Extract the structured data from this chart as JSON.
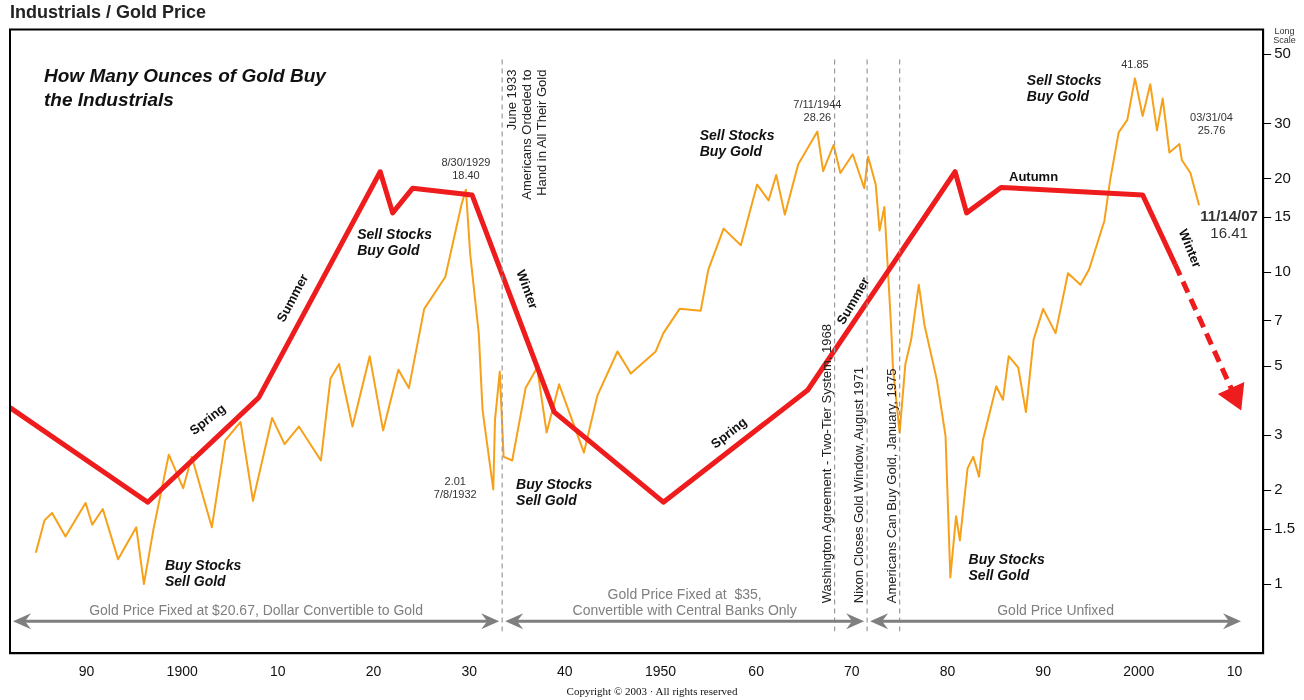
{
  "chart_data": {
    "type": "line",
    "title": "Industrials / Gold Price",
    "subtitle": "How Many Ounces of Gold Buy\nthe Industrials",
    "ylabel": "Long\nScale",
    "log": "y",
    "xlim": [
      1882,
      2013
    ],
    "ylim": [
      0.6,
      60
    ],
    "xticks": [
      {
        "value": 1890,
        "label": "90"
      },
      {
        "value": 1900,
        "label": "1900"
      },
      {
        "value": 1910,
        "label": "10"
      },
      {
        "value": 1920,
        "label": "20"
      },
      {
        "value": 1930,
        "label": "30"
      },
      {
        "value": 1940,
        "label": "40"
      },
      {
        "value": 1950,
        "label": "1950"
      },
      {
        "value": 1960,
        "label": "60"
      },
      {
        "value": 1970,
        "label": "70"
      },
      {
        "value": 1980,
        "label": "80"
      },
      {
        "value": 1990,
        "label": "90"
      },
      {
        "value": 2000,
        "label": "2000"
      },
      {
        "value": 2010,
        "label": "10"
      }
    ],
    "yticks": [
      1,
      1.5,
      2,
      3,
      5,
      7,
      10,
      15,
      20,
      30,
      50
    ],
    "series": [
      {
        "color": "#f7a11a",
        "x": [
          1884.7,
          1885.6,
          1886.4,
          1887.8,
          1889.9,
          1890.6,
          1891.7,
          1893.3,
          1895.2,
          1896.0,
          1897.0,
          1898.6,
          1900.1,
          1901.0,
          1903.1,
          1904.5,
          1906.1,
          1907.4,
          1909.4,
          1910.7,
          1912.2,
          1914.5,
          1915.5,
          1916.4,
          1917.8,
          1919.6,
          1921.0,
          1922.6,
          1923.7,
          1925.3,
          1927.5,
          1929.2,
          1929.66,
          1930.1,
          1931.0,
          1931.4,
          1932.52,
          1932.7,
          1933.2,
          1933.6,
          1934.5,
          1935.9,
          1937.1,
          1938.1,
          1939.4,
          1942.0,
          1943.4,
          1945.5,
          1946.9,
          1949.5,
          1950.3,
          1952.0,
          1954.2,
          1955.0,
          1956.6,
          1958.4,
          1960.1,
          1961.3,
          1962.1,
          1963.0,
          1964.4,
          1966.4,
          1967.0,
          1968.1,
          1968.8,
          1970.1,
          1971.3,
          1971.7,
          1972.5,
          1972.9,
          1973.4,
          1974.1,
          1974.3,
          1975.0,
          1975.6,
          1976.2,
          1977.0,
          1977.6,
          1978.9,
          1979.8,
          1980.3,
          1980.9,
          1981.3,
          1982.1,
          1982.7,
          1983.3,
          1983.7,
          1985.1,
          1985.8,
          1986.4,
          1987.4,
          1988.2,
          1989.0,
          1990.0,
          1991.3,
          1992.6,
          1993.9,
          1994.8,
          1996.4,
          1997.0,
          1997.9,
          1998.8,
          1999.6,
          2000.4,
          2001.2,
          2001.9,
          2002.5,
          2003.2,
          2004.25,
          2004.5,
          2005.4,
          2006.3
        ],
        "values": [
          1.26,
          1.6,
          1.69,
          1.42,
          1.82,
          1.55,
          1.74,
          1.2,
          1.52,
          1.0,
          1.5,
          2.6,
          2.03,
          2.56,
          1.52,
          2.89,
          3.31,
          1.85,
          3.41,
          2.81,
          3.2,
          2.49,
          4.56,
          5.08,
          3.2,
          5.38,
          3.11,
          4.87,
          4.25,
          7.63,
          9.65,
          16.5,
          18.4,
          11.5,
          6.38,
          3.61,
          2.01,
          3.36,
          4.8,
          2.56,
          2.49,
          4.25,
          4.94,
          3.06,
          4.37,
          2.64,
          4.02,
          5.57,
          4.73,
          5.57,
          6.38,
          7.63,
          7.52,
          10.2,
          13.8,
          12.2,
          19.1,
          17.0,
          20.5,
          15.3,
          22.2,
          28.26,
          21.1,
          25.6,
          20.8,
          23.9,
          18.6,
          23.5,
          19.1,
          13.6,
          16.2,
          6.76,
          4.94,
          3.06,
          5.08,
          6.07,
          9.12,
          6.76,
          4.5,
          2.98,
          1.05,
          1.65,
          1.38,
          2.35,
          2.56,
          2.21,
          2.89,
          4.31,
          3.9,
          5.38,
          4.94,
          3.56,
          6.07,
          7.63,
          6.38,
          9.93,
          9.12,
          10.2,
          14.6,
          19.7,
          28.1,
          30.8,
          41.85,
          31.7,
          40.1,
          28.5,
          36.1,
          24.2,
          25.76,
          22.9,
          20.8,
          16.41
        ]
      },
      {
        "color": "#ee1c1c",
        "x": [
          1882,
          1896.4,
          1908,
          1920.7,
          1922,
          1924.1,
          1930.3,
          1938.9,
          1950.3,
          1965.4,
          1980.8,
          1982,
          1985.6,
          2000.4,
          2003.8
        ],
        "values": [
          3.68,
          1.83,
          3.96,
          21,
          15.5,
          18.6,
          17.7,
          3.56,
          1.83,
          4.19,
          21,
          15.5,
          18.7,
          17.7,
          10.6
        ]
      },
      {
        "color": "#ee1c1c",
        "line_style": "dashed",
        "x": [
          2003.8,
          2010.1
        ],
        "values": [
          10.6,
          3.96
        ]
      }
    ],
    "ref_lines": [
      {
        "axis": "x",
        "value": 1933.45,
        "label": "June 1933\nAmericans Ordeded to\nHand in All Their Gold",
        "color": "#9a9a9a",
        "line_style": "dashed"
      },
      {
        "axis": "x",
        "value": 1968.2,
        "label": "Washington Agreement - Two-Tier System, 1968",
        "color": "#9a9a9a",
        "line_style": "dashed"
      },
      {
        "axis": "x",
        "value": 1971.6,
        "label": "Nixon Closes Gold Window, August 1971",
        "color": "#9a9a9a",
        "line_style": "dashed"
      },
      {
        "axis": "x",
        "value": 1975.0,
        "label": "Americans Can Buy Gold, January, 1975",
        "color": "#9a9a9a",
        "line_style": "dashed"
      }
    ],
    "annotations": [
      {
        "text": "8/30/1929\n18.40",
        "x": 1929.66,
        "y": 18.4
      },
      {
        "text": "2.01\n7/8/1932",
        "x": 1932.52,
        "y": 2.01
      },
      {
        "text": "7/11/1944\n28.26",
        "x": 1966.4,
        "y": 28.26
      },
      {
        "text": "41.85",
        "x": 1999.6,
        "y": 41.85
      },
      "03/31/04\n25.76",
      {
        "text": "11/14/07\n16.41",
        "x": 2006.3,
        "y": 16.41
      },
      "Sell Stocks\nBuy Gold",
      "Buy Stocks\nSell Gold",
      "Buy Stocks\nSell Gold",
      "Sell Stocks\nBuy Gold",
      "Buy Stocks\nSell Gold",
      "Sell Stocks\nBuy Gold",
      "Spring",
      "Summer",
      "Winter",
      "Spring",
      "Summer",
      "Autumn",
      "Winter",
      "Gold Price Fixed at $20.67, Dollar Convertible to Gold",
      "Gold Price Fixed at  $35,\nConvertible with Central Banks Only",
      "Gold Price Unfixed",
      "Copyright © 2003 · All rights reserved"
    ]
  }
}
